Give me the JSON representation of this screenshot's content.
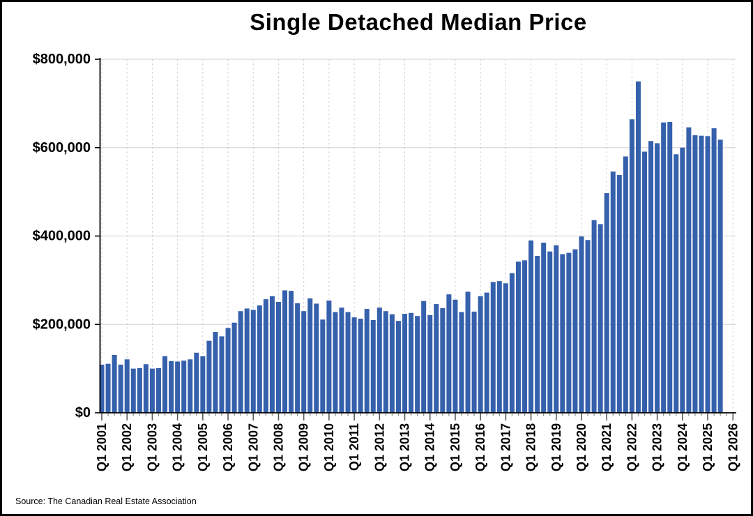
{
  "title": "Single Detached Median Price",
  "source_note": "Source: The Canadian Real Estate Association",
  "colors": {
    "bar": "#3560AC",
    "h_gridline": "#D9D9D9",
    "v_gridline": "#CCCCCC",
    "axis": "#000000",
    "major_tick": "#595959",
    "minor_tick": "#999999",
    "text": "#000000",
    "background": "#FFFFFF"
  },
  "chart_data": {
    "type": "bar",
    "title": "Single Detached Median Price",
    "unit": "CAD",
    "xlabel": "",
    "ylabel": "",
    "ylim": [
      0,
      800000
    ],
    "y_tick_values": [
      0,
      200000,
      400000,
      600000,
      800000
    ],
    "y_tick_labels": [
      "$0",
      "$200,000",
      "$400,000",
      "$600,000",
      "$800,000"
    ],
    "x_tick_labels": [
      "Q1 2001",
      "Q1 2002",
      "Q1 2003",
      "Q1 2004",
      "Q1 2005",
      "Q1 2006",
      "Q1 2007",
      "Q1 2008",
      "Q1 2009",
      "Q1 2010",
      "Q1 2011",
      "Q1 2012",
      "Q1 2013",
      "Q1 2014",
      "Q1 2015",
      "Q1 2016",
      "Q1 2017",
      "Q1 2018",
      "Q1 2019",
      "Q1 2020",
      "Q1 2021",
      "Q1 2022",
      "Q1 2023",
      "Q1 2024",
      "Q1 2025",
      "Q1 2026"
    ],
    "grid": {
      "horizontal": "solid",
      "vertical_yearly": "dashed"
    },
    "legend_position": "none",
    "bar_color": "#3560AC",
    "categories": [
      "Q1 2001",
      "Q2 2001",
      "Q3 2001",
      "Q4 2001",
      "Q1 2002",
      "Q2 2002",
      "Q3 2002",
      "Q4 2002",
      "Q1 2003",
      "Q2 2003",
      "Q3 2003",
      "Q4 2003",
      "Q1 2004",
      "Q2 2004",
      "Q3 2004",
      "Q4 2004",
      "Q1 2005",
      "Q2 2005",
      "Q3 2005",
      "Q4 2005",
      "Q1 2006",
      "Q2 2006",
      "Q3 2006",
      "Q4 2006",
      "Q1 2007",
      "Q2 2007",
      "Q3 2007",
      "Q4 2007",
      "Q1 2008",
      "Q2 2008",
      "Q3 2008",
      "Q4 2008",
      "Q1 2009",
      "Q2 2009",
      "Q3 2009",
      "Q4 2009",
      "Q1 2010",
      "Q2 2010",
      "Q3 2010",
      "Q4 2010",
      "Q1 2011",
      "Q2 2011",
      "Q3 2011",
      "Q4 2011",
      "Q1 2012",
      "Q2 2012",
      "Q3 2012",
      "Q4 2012",
      "Q1 2013",
      "Q2 2013",
      "Q3 2013",
      "Q4 2013",
      "Q1 2014",
      "Q2 2014",
      "Q3 2014",
      "Q4 2014",
      "Q1 2015",
      "Q2 2015",
      "Q3 2015",
      "Q4 2015",
      "Q1 2016",
      "Q2 2016",
      "Q3 2016",
      "Q4 2016",
      "Q1 2017",
      "Q2 2017",
      "Q3 2017",
      "Q4 2017",
      "Q1 2018",
      "Q2 2018",
      "Q3 2018",
      "Q4 2018",
      "Q1 2019",
      "Q2 2019",
      "Q3 2019",
      "Q4 2019",
      "Q1 2020",
      "Q2 2020",
      "Q3 2020",
      "Q4 2020",
      "Q1 2021",
      "Q2 2021",
      "Q3 2021",
      "Q4 2021",
      "Q1 2022",
      "Q2 2022",
      "Q3 2022",
      "Q4 2022",
      "Q1 2023",
      "Q2 2023",
      "Q3 2023",
      "Q4 2023",
      "Q1 2024",
      "Q2 2024",
      "Q3 2024",
      "Q4 2024",
      "Q1 2025",
      "Q2 2025",
      "Q3 2025"
    ],
    "values": [
      109000,
      111000,
      131000,
      109000,
      121000,
      100000,
      101000,
      110000,
      100000,
      101000,
      128000,
      117000,
      116000,
      118000,
      121000,
      136000,
      128000,
      163000,
      183000,
      173000,
      192000,
      204000,
      230000,
      236000,
      233000,
      243000,
      257000,
      264000,
      251000,
      277000,
      276000,
      248000,
      230000,
      259000,
      247000,
      211000,
      254000,
      228000,
      238000,
      228000,
      216000,
      213000,
      235000,
      210000,
      238000,
      230000,
      223000,
      208000,
      224000,
      226000,
      219000,
      253000,
      221000,
      246000,
      237000,
      268000,
      256000,
      228000,
      274000,
      229000,
      264000,
      272000,
      296000,
      298000,
      293000,
      316000,
      342000,
      345000,
      390000,
      355000,
      385000,
      365000,
      379000,
      359000,
      362000,
      370000,
      399000,
      391000,
      436000,
      427000,
      497000,
      546000,
      538000,
      580000,
      664000,
      750000,
      591000,
      615000,
      610000,
      657000,
      658000,
      585000,
      600000,
      646000,
      628000,
      627000,
      626000,
      644000,
      618000
    ]
  }
}
